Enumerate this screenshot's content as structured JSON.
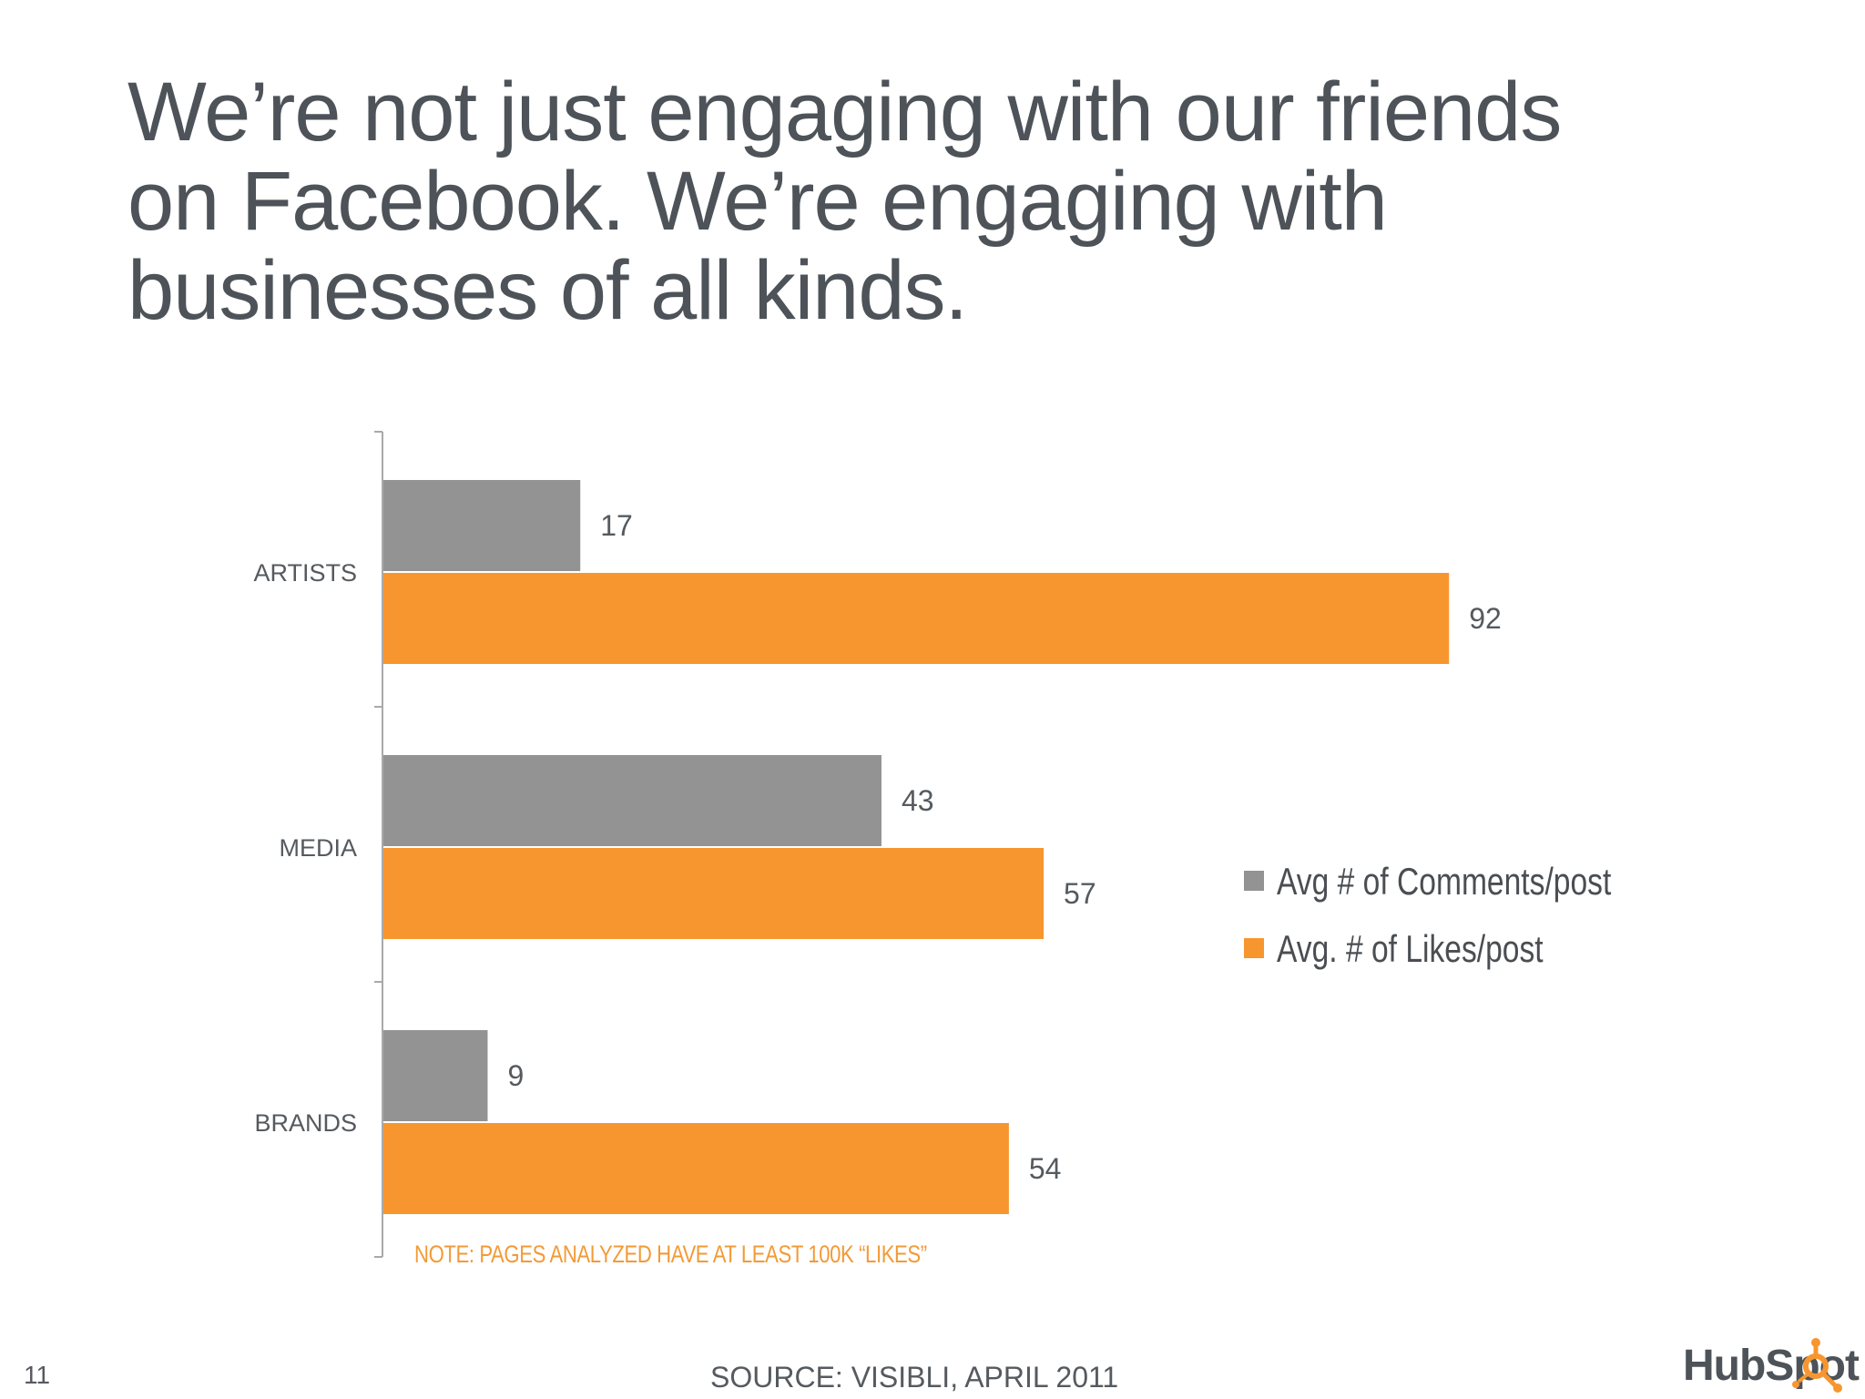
{
  "title_lines": [
    "We’re not just engaging with our friends",
    "on Facebook. We’re engaging with",
    "businesses of all kinds."
  ],
  "chart_data": {
    "type": "bar",
    "orientation": "horizontal",
    "categories": [
      "ARTISTS",
      "MEDIA",
      "BRANDS"
    ],
    "series": [
      {
        "name": "Avg # of Comments/post",
        "values": [
          17,
          43,
          9
        ],
        "color": "#939393"
      },
      {
        "name": "Avg. # of Likes/post",
        "values": [
          92,
          57,
          54
        ],
        "color": "#f7962f"
      }
    ],
    "xlim": [
      0,
      100
    ],
    "grid": false,
    "legend_position": "right",
    "data_labels": true,
    "note": "NOTE: PAGES ANALYZED HAVE AT LEAST 100K “LIKES”"
  },
  "footer": {
    "page_number": "11",
    "source": "SOURCE: VISIBLI, APRIL 2011",
    "logo_text": "HubSpot"
  },
  "colors": {
    "title": "#4d5358",
    "accent": "#f7962f",
    "gray_bar": "#939393"
  }
}
